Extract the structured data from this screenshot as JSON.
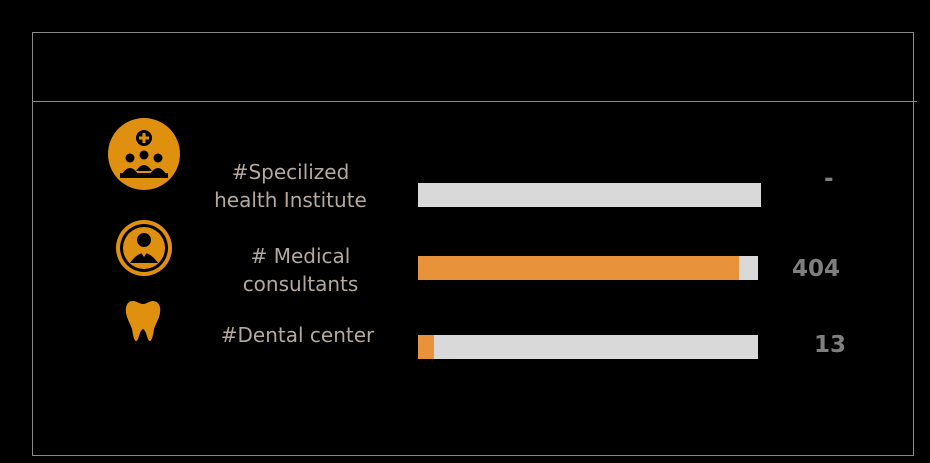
{
  "colors": {
    "accent": "#e8933a",
    "icon_fill": "#e0900f",
    "track": "#d9d9d9",
    "label": "#b5a89e",
    "value": "#7f7f7f"
  },
  "chart_data": {
    "type": "bar",
    "orientation": "horizontal",
    "categories": [
      [
        "#Specilized",
        "health  Institute"
      ],
      [
        "#  Medical",
        "consultants"
      ],
      [
        "#Dental center"
      ]
    ],
    "value_labels": [
      "-",
      "404",
      "13"
    ],
    "fill_fraction": [
      0,
      0.944,
      0.047
    ],
    "icons": [
      "health-institute-icon",
      "medical-consultant-icon",
      "tooth-icon"
    ],
    "title": "",
    "xlabel": "",
    "ylabel": ""
  }
}
